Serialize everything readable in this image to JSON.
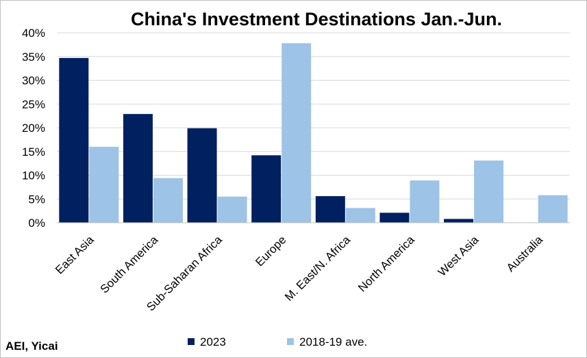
{
  "chart_data": {
    "type": "bar",
    "title": "China's Investment Destinations Jan.-Jun.",
    "categories": [
      "East Asia",
      "South America",
      "Sub-Saharan Africa",
      "Europe",
      "M. East/N. Africa",
      "North America",
      "West Asia",
      "Australia"
    ],
    "series": [
      {
        "name": "2023",
        "color": "#002060",
        "values": [
          34.7,
          22.9,
          19.9,
          14.2,
          5.6,
          2.1,
          0.8,
          0.0
        ]
      },
      {
        "name": "2018-19 ave.",
        "color": "#9dc3e6",
        "values": [
          16.0,
          9.4,
          5.5,
          37.8,
          3.1,
          8.9,
          13.1,
          5.8
        ]
      }
    ],
    "ylim": [
      0,
      40
    ],
    "yticks": [
      "0%",
      "5%",
      "10%",
      "15%",
      "20%",
      "25%",
      "30%",
      "35%",
      "40%"
    ],
    "xlabel": "",
    "ylabel": "",
    "grid": true,
    "legend_position": "bottom"
  },
  "source": "AEI, Yicai"
}
